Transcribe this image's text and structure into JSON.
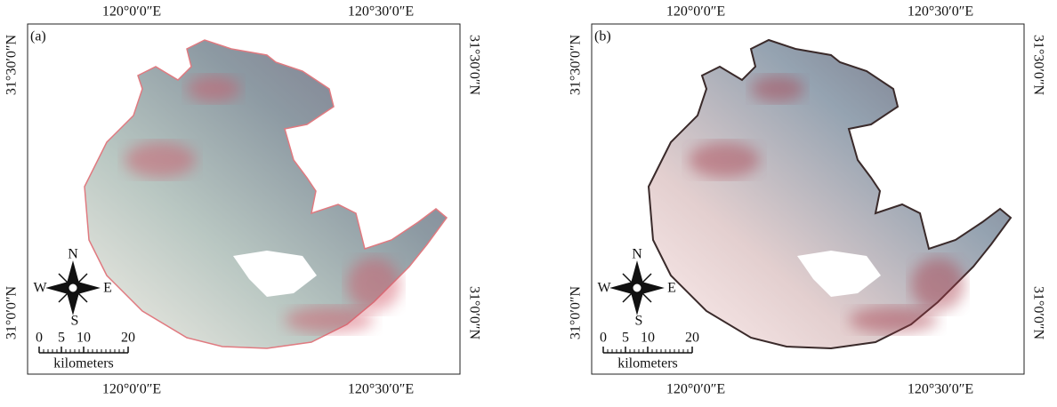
{
  "panels": [
    {
      "label": "(a)",
      "top_ticks": [
        "120°0′0″E",
        "120°30′0″E"
      ],
      "bottom_ticks": [
        "120°0′0″E",
        "120°30′0″E"
      ],
      "left_ticks": [
        "31°30′0″N",
        "31°0′0″N"
      ],
      "right_ticks": [
        "31°30′0″N",
        "31°0′0″N"
      ],
      "compass": {
        "n": "N",
        "e": "E",
        "s": "S",
        "w": "W"
      },
      "scale": {
        "ticks": [
          0,
          5,
          10,
          20
        ],
        "unit": "kilometers"
      }
    },
    {
      "label": "(b)",
      "top_ticks": [
        "120°0′0″E",
        "120°30′0″E"
      ],
      "bottom_ticks": [
        "120°0′0″E",
        "120°30′0″E"
      ],
      "left_ticks": [
        "31°30′0″N",
        "31°0′0″N"
      ],
      "right_ticks": [
        "31°30′0″N",
        "31°0′0″N"
      ],
      "compass": {
        "n": "N",
        "e": "E",
        "s": "S",
        "w": "W"
      },
      "scale": {
        "ticks": [
          0,
          5,
          10,
          20
        ],
        "unit": "kilometers"
      }
    }
  ]
}
